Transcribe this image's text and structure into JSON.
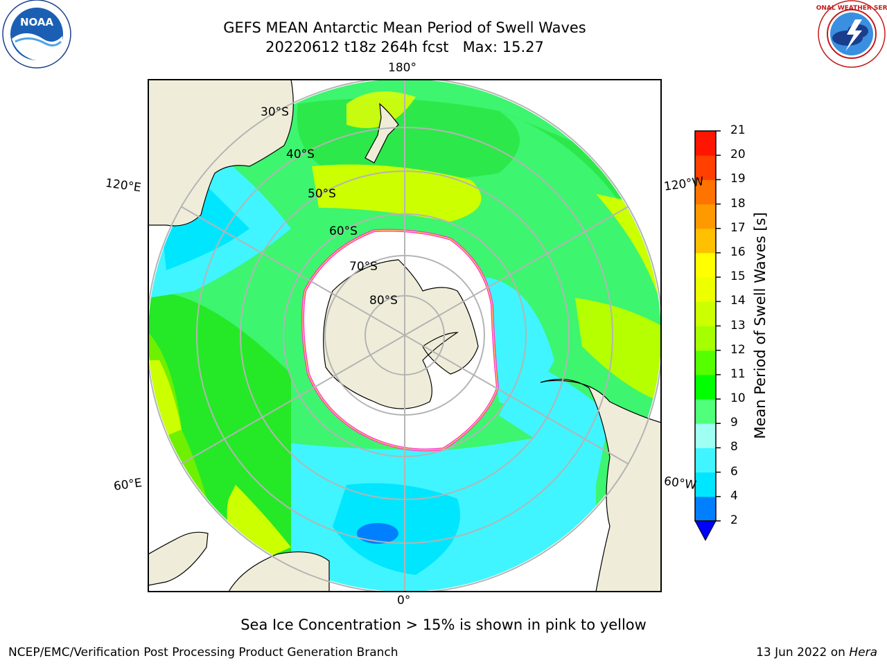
{
  "header": {
    "title": "GEFS MEAN Antarctic Mean Period of Swell Waves",
    "subtitle": "20220612 t18z 264h fcst   Max: 15.27"
  },
  "logos": {
    "left": "noaa-logo",
    "left_text": "NOAA",
    "right": "national-weather-service-logo",
    "right_text": "NATIONAL WEATHER SERVICE"
  },
  "map": {
    "projection": "south-polar-stereographic",
    "lon_labels": [
      "180°",
      "120°E",
      "120°W",
      "60°E",
      "60°W",
      "0°"
    ],
    "lat_labels": [
      "30°S",
      "40°S",
      "50°S",
      "60°S",
      "70°S",
      "80°S"
    ],
    "colors": {
      "land": "#efedd9",
      "ice_edge": [
        "#ff3bd0",
        "#ffd23f"
      ],
      "grid": "#b4b4b4"
    }
  },
  "colorbar": {
    "label": "Mean Period of Swell Waves [s]",
    "ticks": [
      "21",
      "20",
      "19",
      "18",
      "17",
      "16",
      "15",
      "14",
      "13",
      "12",
      "11",
      "10",
      "9",
      "8",
      "6",
      "4",
      "2"
    ],
    "colors": [
      "#0000ff",
      "#0080ff",
      "#00e6ff",
      "#40f5ff",
      "#9ffff2",
      "#50ff7a",
      "#00ff00",
      "#55ff00",
      "#a6ff00",
      "#ccff00",
      "#eeff00",
      "#ffff00",
      "#ffc000",
      "#ff9900",
      "#ff7300",
      "#ff4000",
      "#ff1500",
      "#ff0000"
    ]
  },
  "footer": {
    "note": "Sea Ice Concentration > 15% is shown in pink to yellow",
    "credit": "NCEP/EMC/Verification Post Processing Product Generation Branch",
    "date": "13 Jun 2022 on",
    "host": "Hera"
  }
}
